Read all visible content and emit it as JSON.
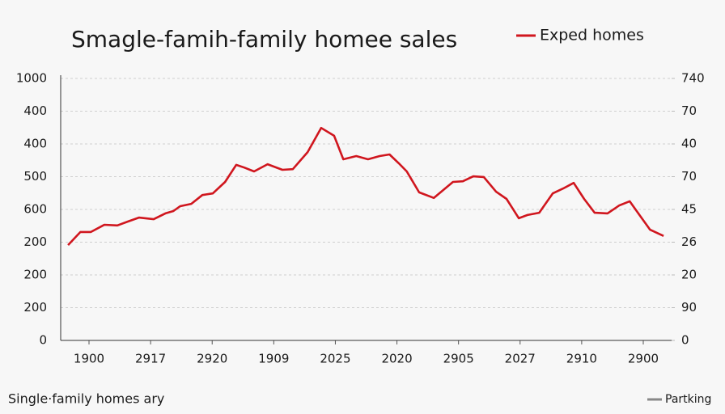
{
  "chart_data": {
    "type": "line",
    "title": "Smagle-famih-family homee sales",
    "footer_left": "Single·family homes ary",
    "footer_right": "Partking",
    "legend": "top-right",
    "grid": true,
    "x": [
      -0.34,
      -0.14,
      0.03,
      0.25,
      0.46,
      0.63,
      0.81,
      1.05,
      1.24,
      1.37,
      1.48,
      1.66,
      1.84,
      2.01,
      2.21,
      2.39,
      2.52,
      2.68,
      2.9,
      3.14,
      3.31,
      3.55,
      3.77,
      3.98,
      4.13,
      4.34,
      4.53,
      4.72,
      4.88,
      5.03,
      5.16,
      5.36,
      5.6,
      5.91,
      6.07,
      6.24,
      6.41,
      6.61,
      6.78,
      6.98,
      7.12,
      7.31,
      7.53,
      7.7,
      7.87,
      8.04,
      8.21,
      8.42,
      8.61,
      8.78,
      8.95,
      9.11,
      9.33
    ],
    "series": [
      {
        "name": "Exped homes",
        "color": "#d0161e",
        "values": [
          2.91,
          3.31,
          3.31,
          3.53,
          3.51,
          3.63,
          3.75,
          3.7,
          3.88,
          3.95,
          4.1,
          4.17,
          4.44,
          4.49,
          4.84,
          5.36,
          5.28,
          5.16,
          5.38,
          5.21,
          5.23,
          5.75,
          6.49,
          6.25,
          5.53,
          5.63,
          5.53,
          5.63,
          5.68,
          5.41,
          5.16,
          4.52,
          4.35,
          4.84,
          4.86,
          5.01,
          4.99,
          4.54,
          4.32,
          3.73,
          3.83,
          3.9,
          4.49,
          4.64,
          4.81,
          4.32,
          3.9,
          3.88,
          4.12,
          4.25,
          3.8,
          3.38,
          3.19
        ]
      }
    ],
    "xlim": [
      -0.46,
      9.46
    ],
    "xticks": [
      {
        "value": 0,
        "label": "1900"
      },
      {
        "value": 1,
        "label": "2917"
      },
      {
        "value": 2,
        "label": "2920"
      },
      {
        "value": 3,
        "label": "1909"
      },
      {
        "value": 4,
        "label": "2025"
      },
      {
        "value": 5,
        "label": "2020"
      },
      {
        "value": 6,
        "label": "2905"
      },
      {
        "value": 7,
        "label": "2027"
      },
      {
        "value": 8,
        "label": "2910"
      },
      {
        "value": 9,
        "label": "2900"
      }
    ],
    "ylim": [
      0,
      8
    ],
    "yticks": [
      {
        "value": 8,
        "label": "1000"
      },
      {
        "value": 7,
        "label": "400"
      },
      {
        "value": 6,
        "label": "400"
      },
      {
        "value": 5,
        "label": "500"
      },
      {
        "value": 4,
        "label": "600"
      },
      {
        "value": 3,
        "label": "200"
      },
      {
        "value": 2,
        "label": "200"
      },
      {
        "value": 1,
        "label": "200"
      },
      0
    ],
    "y2lim": [
      0,
      8
    ],
    "y2ticks": [
      {
        "value": 8,
        "label": "740"
      },
      {
        "value": 7,
        "label": "70"
      },
      {
        "value": 6,
        "label": "40"
      },
      {
        "value": 5,
        "label": "70"
      },
      {
        "value": 4,
        "label": "45"
      },
      {
        "value": 3,
        "label": "26"
      },
      {
        "value": 2,
        "label": "20"
      },
      {
        "value": 1,
        "label": "90"
      },
      0
    ]
  }
}
